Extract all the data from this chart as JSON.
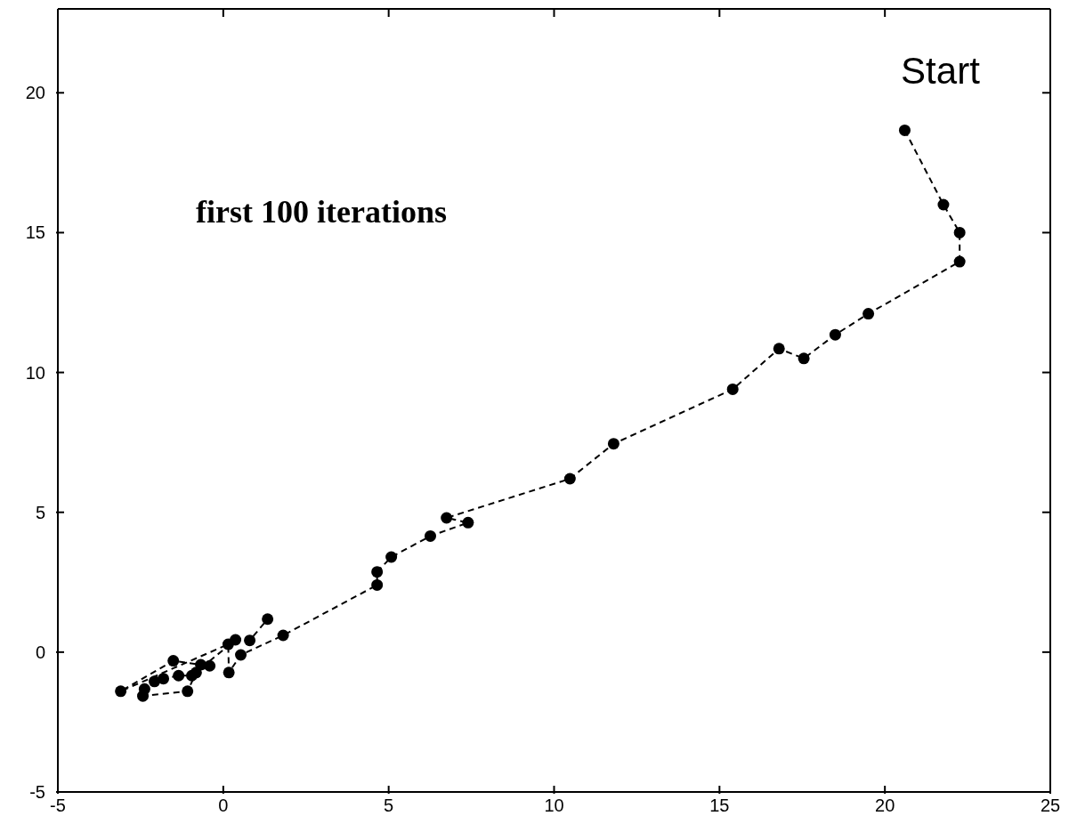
{
  "chart_data": {
    "type": "line",
    "annotations": [
      {
        "text": "Start",
        "x": 20.6,
        "y": 18.66
      },
      "first 100 iterations"
    ],
    "x": [
      20.6,
      21.77,
      22.26,
      22.26,
      19.5,
      18.5,
      17.55,
      16.8,
      15.4,
      11.8,
      10.48,
      6.75,
      7.4,
      6.26,
      5.08,
      4.65,
      4.65,
      1.81,
      0.53,
      0.17,
      0.15,
      -3.1,
      -1.51,
      -0.68,
      -0.41,
      -0.82,
      -1.08,
      -2.43,
      -2.38,
      -2.08,
      -1.81,
      -1.35,
      -0.95,
      0.37,
      0.8,
      1.34
    ],
    "series": [
      {
        "color": "#000000",
        "values": [
          18.66,
          16.0,
          15.0,
          13.96,
          12.1,
          11.35,
          10.5,
          10.85,
          9.4,
          7.45,
          6.2,
          4.8,
          4.63,
          4.15,
          3.4,
          2.87,
          2.4,
          0.6,
          -0.1,
          -0.73,
          0.28,
          -1.4,
          -0.31,
          -0.45,
          -0.49,
          -0.73,
          -1.4,
          -1.57,
          -1.32,
          -1.05,
          -0.95,
          -0.84,
          -0.84,
          0.44,
          0.42,
          1.18
        ]
      }
    ],
    "xlim": [
      -5,
      25
    ],
    "xticks": [
      -5,
      0,
      5,
      10,
      15,
      20,
      25
    ],
    "ylim": [
      -5,
      23
    ],
    "yticks": [
      -5,
      0,
      5,
      10,
      15,
      20
    ],
    "grid": false,
    "legend": false,
    "marker": "circle",
    "line_style": "dashed"
  }
}
